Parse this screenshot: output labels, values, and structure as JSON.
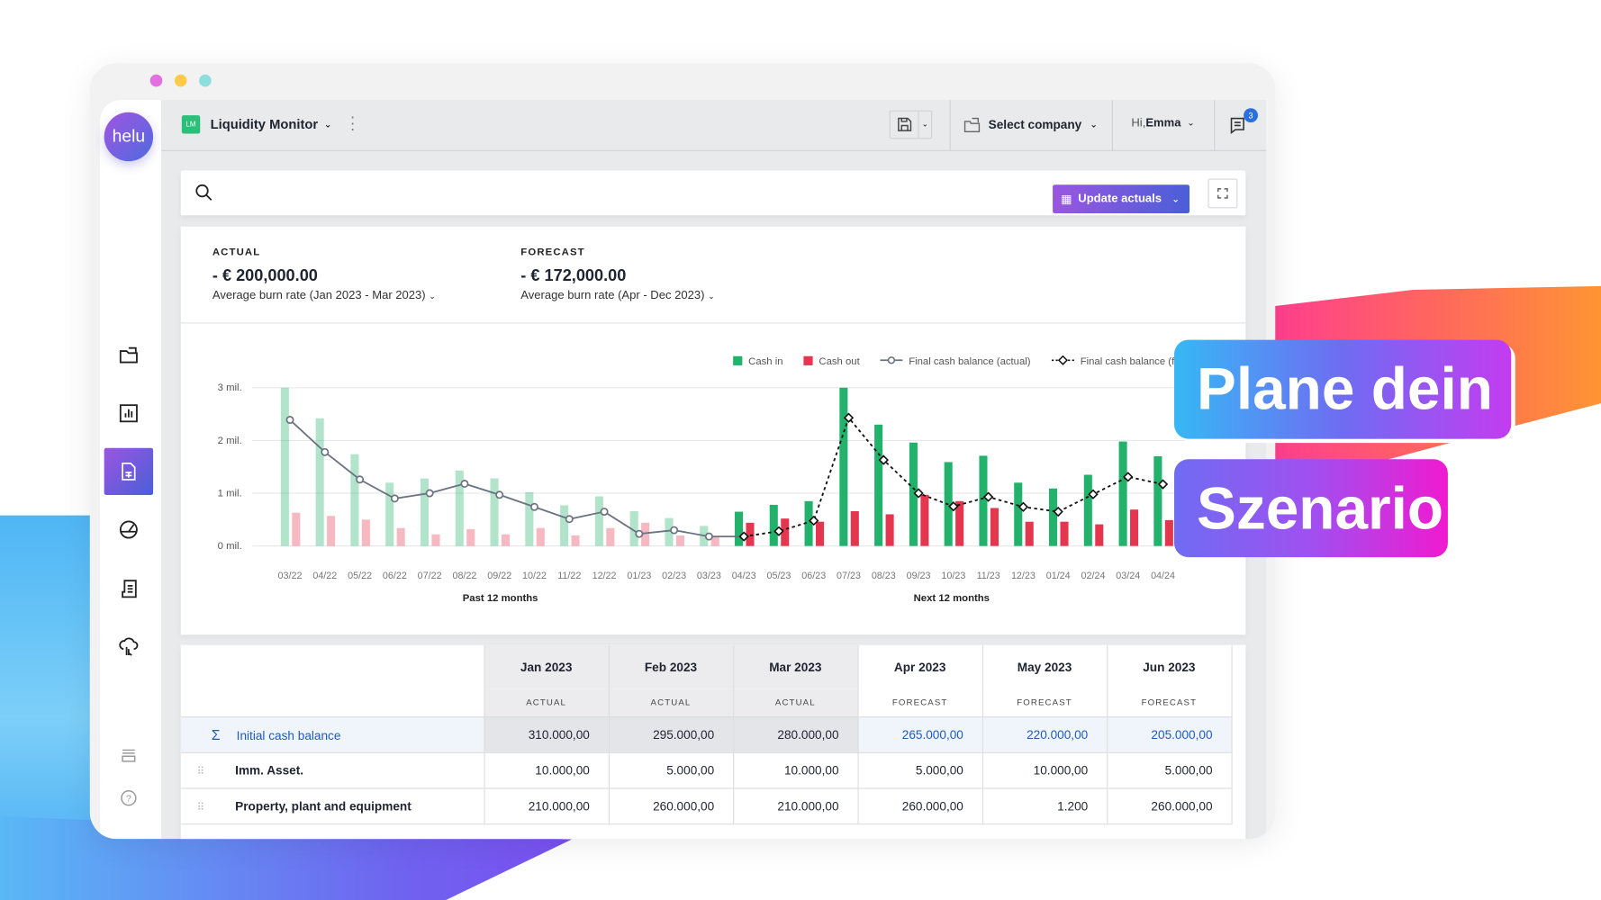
{
  "window": {
    "dots": [
      "#e36fe0",
      "#ffc94a",
      "#8fdede"
    ]
  },
  "sidebar": {
    "logo": "helu",
    "items": [
      {
        "icon": "folder-icon"
      },
      {
        "icon": "bar-chart-icon"
      },
      {
        "icon": "spreadsheet-icon",
        "active": true
      },
      {
        "icon": "gauge-icon"
      },
      {
        "icon": "receipt-icon"
      },
      {
        "icon": "cloud-sync-icon"
      },
      {
        "icon": "layers-icon"
      },
      {
        "icon": "help-icon"
      }
    ]
  },
  "topbar": {
    "app_badge": "LM",
    "app_title": "Liquidity Monitor",
    "company_select": "Select company",
    "greeting": "Hi,",
    "user": "Emma",
    "notifications": "3"
  },
  "toolbar": {
    "update_label": "Update actuals"
  },
  "summary": {
    "actual": {
      "label": "ACTUAL",
      "value": "- € 200,000.00",
      "sub": "Average burn rate (Jan 2023 - Mar 2023)"
    },
    "forecast": {
      "label": "FORECAST",
      "value": "- € 172,000.00",
      "sub": "Average burn rate (Apr - Dec 2023)"
    }
  },
  "chart_data": {
    "type": "bar",
    "categories": [
      "03/22",
      "04/22",
      "05/22",
      "06/22",
      "07/22",
      "08/22",
      "09/22",
      "10/22",
      "11/22",
      "12/22",
      "01/23",
      "02/23",
      "03/23",
      "04/23",
      "05/23",
      "06/23",
      "07/23",
      "08/23",
      "09/23",
      "10/23",
      "11/23",
      "12/23",
      "01/24",
      "02/24",
      "03/24",
      "04/24"
    ],
    "series": [
      {
        "name": "Cash in",
        "color": "#22b26b",
        "values": [
          3.0,
          2.42,
          1.74,
          1.2,
          1.28,
          1.43,
          1.28,
          1.02,
          0.77,
          0.94,
          0.66,
          0.53,
          0.38,
          0.65,
          0.78,
          0.85,
          3.0,
          2.3,
          1.96,
          1.59,
          1.71,
          1.2,
          1.09,
          1.35,
          1.98,
          1.7
        ]
      },
      {
        "name": "Cash out",
        "color": "#e5364f",
        "values": [
          0.63,
          0.57,
          0.5,
          0.34,
          0.22,
          0.32,
          0.22,
          0.34,
          0.2,
          0.34,
          0.44,
          0.2,
          0.19,
          0.44,
          0.52,
          0.46,
          0.66,
          0.6,
          0.97,
          0.85,
          0.72,
          0.46,
          0.46,
          0.41,
          0.69,
          0.49
        ]
      },
      {
        "name": "Final cash balance (actual)",
        "color": "#6b7280",
        "values": [
          2.39,
          1.78,
          1.26,
          0.9,
          1.0,
          1.18,
          0.97,
          0.74,
          0.51,
          0.65,
          0.23,
          0.3,
          0.18,
          0.18,
          null,
          null,
          null,
          null,
          null,
          null,
          null,
          null,
          null,
          null,
          null,
          null
        ]
      },
      {
        "name": "Final cash balance (forecast)",
        "color": "#111111",
        "values": [
          null,
          null,
          null,
          null,
          null,
          null,
          null,
          null,
          null,
          null,
          null,
          null,
          null,
          0.18,
          0.28,
          0.48,
          2.43,
          1.63,
          1.0,
          0.75,
          0.93,
          0.74,
          0.65,
          0.98,
          1.31,
          1.17
        ]
      }
    ],
    "actual_count": 13,
    "yticks": [
      {
        "v": 3,
        "label": "3 mil."
      },
      {
        "v": 2,
        "label": "2 mil."
      },
      {
        "v": 1,
        "label": "1 mil."
      },
      {
        "v": 0,
        "label": "0 mil."
      }
    ],
    "ylim": [
      0,
      3
    ],
    "sections": [
      "Past 12 months",
      "Next 12 months"
    ],
    "legend_position": "top-right",
    "grid": true
  },
  "table": {
    "months": [
      {
        "m": "Jan 2023",
        "t": "ACTUAL"
      },
      {
        "m": "Feb 2023",
        "t": "ACTUAL"
      },
      {
        "m": "Mar 2023",
        "t": "ACTUAL"
      },
      {
        "m": "Apr 2023",
        "t": "FORECAST"
      },
      {
        "m": "May 2023",
        "t": "FORECAST"
      },
      {
        "m": "Jun 2023",
        "t": "FORECAST"
      }
    ],
    "rows": [
      {
        "label": "Initial cash balance",
        "values": [
          "310.000,00",
          "295.000,00",
          "280.000,00",
          "265.000,00",
          "220.000,00",
          "205.000,00"
        ]
      },
      {
        "label": "Imm. Asset.",
        "values": [
          "10.000,00",
          "5.000,00",
          "10.000,00",
          "5.000,00",
          "10.000,00",
          "5.000,00"
        ]
      },
      {
        "label": "Property, plant and equipment",
        "values": [
          "210.000,00",
          "260.000,00",
          "210.000,00",
          "260.000,00",
          "1.200",
          "260.000,00"
        ]
      }
    ]
  },
  "promo": {
    "line1": "Plane dein",
    "line2": "Szenario"
  }
}
